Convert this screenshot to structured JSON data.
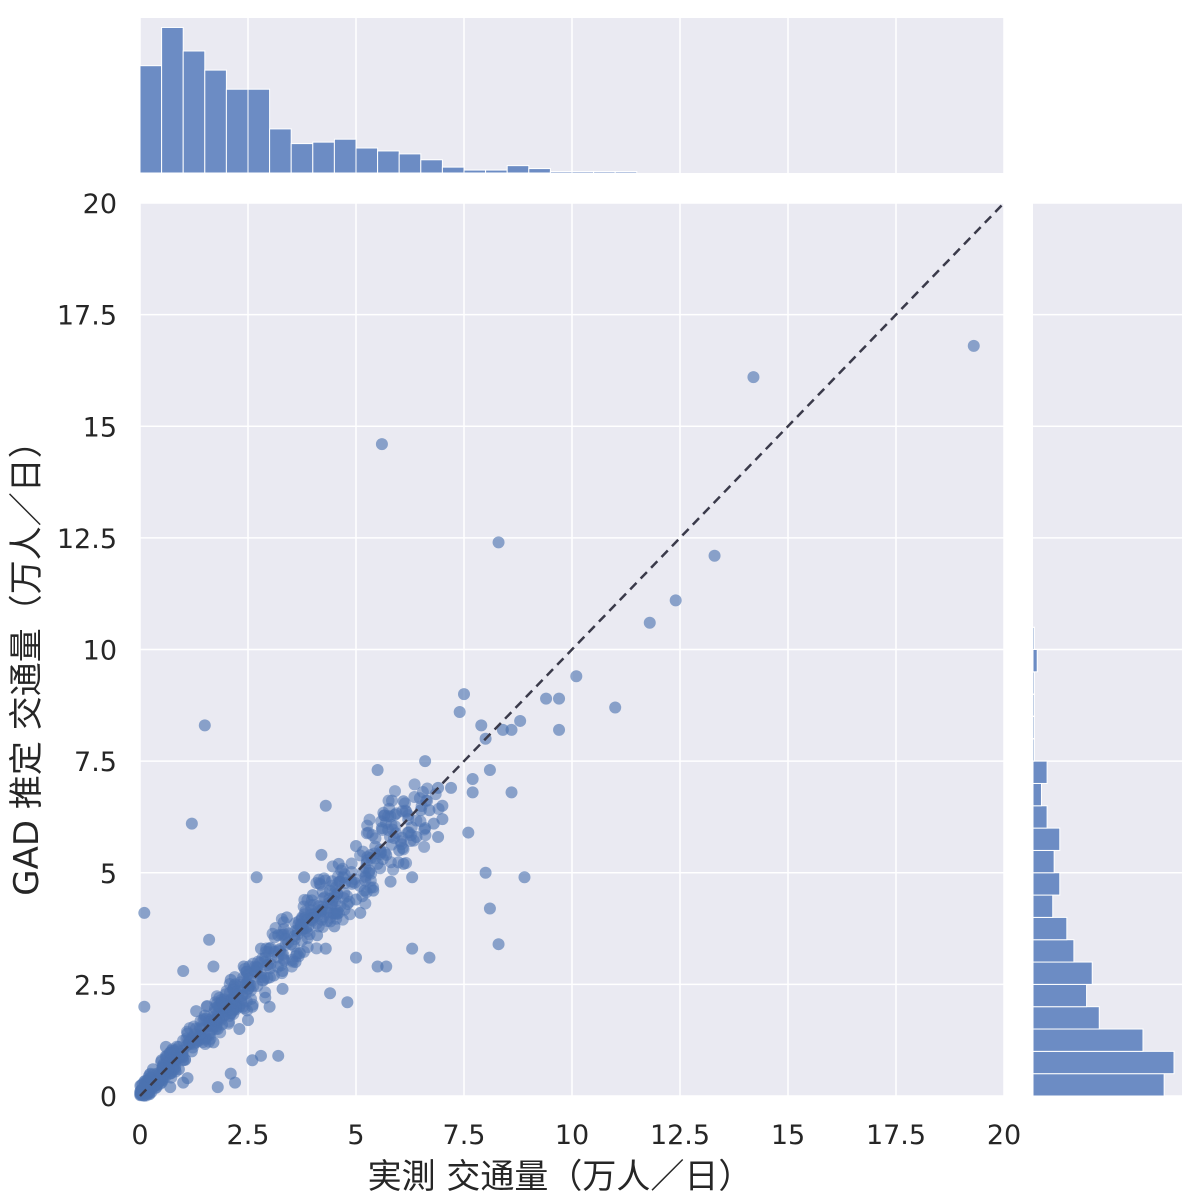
{
  "chart_data": {
    "type": "scatter",
    "subtype": "jointplot",
    "xlabel": "実測 交通量（万人／日）",
    "ylabel": "GAD 推定 交通量（万人／日）",
    "xlim": [
      0,
      20
    ],
    "ylim": [
      0,
      20
    ],
    "x_ticks": [
      "0",
      "2.5",
      "5",
      "7.5",
      "10",
      "12.5",
      "15",
      "17.5",
      "20"
    ],
    "y_ticks": [
      "0",
      "2.5",
      "5",
      "7.5",
      "10",
      "12.5",
      "15",
      "17.5",
      "20"
    ],
    "grid": true,
    "reference_line": {
      "style": "dashed",
      "from": [
        0,
        0
      ],
      "to": [
        20,
        20
      ]
    },
    "colors": {
      "points": "#4c72b0",
      "bars": "#6c8cc4",
      "panel_bg": "#eaeaf2",
      "grid": "#ffffff",
      "diagonal": "#3a3a4a"
    },
    "points": [
      [
        19.3,
        16.8
      ],
      [
        14.2,
        16.1
      ],
      [
        5.6,
        14.6
      ],
      [
        8.3,
        12.4
      ],
      [
        13.3,
        12.1
      ],
      [
        12.4,
        11.1
      ],
      [
        11.8,
        10.6
      ],
      [
        10.1,
        9.4
      ],
      [
        7.5,
        9.0
      ],
      [
        9.4,
        8.9
      ],
      [
        9.7,
        8.9
      ],
      [
        11.0,
        8.7
      ],
      [
        7.4,
        8.6
      ],
      [
        8.8,
        8.4
      ],
      [
        7.9,
        8.3
      ],
      [
        8.0,
        8.0
      ],
      [
        9.7,
        8.2
      ],
      [
        8.6,
        8.2
      ],
      [
        8.4,
        8.2
      ],
      [
        1.5,
        8.3
      ],
      [
        6.6,
        7.5
      ],
      [
        5.5,
        7.3
      ],
      [
        8.1,
        7.3
      ],
      [
        7.7,
        7.1
      ],
      [
        6.9,
        6.9
      ],
      [
        7.7,
        6.8
      ],
      [
        8.6,
        6.8
      ],
      [
        4.3,
        6.5
      ],
      [
        6.1,
        6.6
      ],
      [
        1.2,
        6.1
      ],
      [
        7.6,
        5.9
      ],
      [
        6.8,
        6.1
      ],
      [
        7.0,
        6.2
      ],
      [
        8.0,
        5.0
      ],
      [
        8.9,
        4.9
      ],
      [
        8.1,
        4.2
      ],
      [
        8.3,
        3.4
      ],
      [
        6.3,
        3.3
      ],
      [
        6.7,
        3.1
      ],
      [
        5.0,
        3.1
      ],
      [
        5.5,
        2.9
      ],
      [
        5.7,
        2.9
      ],
      [
        4.4,
        2.3
      ],
      [
        4.8,
        2.1
      ],
      [
        2.7,
        4.9
      ],
      [
        1.6,
        3.5
      ],
      [
        0.1,
        4.1
      ],
      [
        0.1,
        2.0
      ],
      [
        1.0,
        2.8
      ],
      [
        1.8,
        1.5
      ],
      [
        2.8,
        0.9
      ],
      [
        2.6,
        0.8
      ],
      [
        3.2,
        0.9
      ],
      [
        2.1,
        0.5
      ],
      [
        1.1,
        0.4
      ],
      [
        0.6,
        0.6
      ],
      [
        2.2,
        0.3
      ],
      [
        1.8,
        0.2
      ],
      [
        1.7,
        2.9
      ],
      [
        2.1,
        2.6
      ],
      [
        2.5,
        1.7
      ],
      [
        3.3,
        2.4
      ],
      [
        3.0,
        2.0
      ],
      [
        0.5,
        0.3
      ],
      [
        0.7,
        0.5
      ],
      [
        0.3,
        0.2
      ],
      [
        0.9,
        1.1
      ],
      [
        1.3,
        1.2
      ],
      [
        4.6,
        5.2
      ],
      [
        5.0,
        5.6
      ],
      [
        3.8,
        4.9
      ],
      [
        4.2,
        5.4
      ],
      [
        5.6,
        6.0
      ],
      [
        6.0,
        5.5
      ],
      [
        5.3,
        5.0
      ],
      [
        4.0,
        4.0
      ],
      [
        4.4,
        4.6
      ],
      [
        3.5,
        3.4
      ],
      [
        3.9,
        3.8
      ],
      [
        4.8,
        4.3
      ],
      [
        5.2,
        4.6
      ],
      [
        4.5,
        3.8
      ],
      [
        3.2,
        3.6
      ],
      [
        2.9,
        3.1
      ],
      [
        3.6,
        3.0
      ],
      [
        2.5,
        2.4
      ],
      [
        2.3,
        2.0
      ],
      [
        2.0,
        1.9
      ],
      [
        1.6,
        1.4
      ],
      [
        1.4,
        1.5
      ],
      [
        1.2,
        1.0
      ],
      [
        1.0,
        0.8
      ],
      [
        0.8,
        0.9
      ],
      [
        0.4,
        0.5
      ],
      [
        0.2,
        0.1
      ],
      [
        6.2,
        5.9
      ],
      [
        6.5,
        6.4
      ],
      [
        5.9,
        6.3
      ],
      [
        6.4,
        5.8
      ],
      [
        5.7,
        5.4
      ],
      [
        6.3,
        4.9
      ],
      [
        6.9,
        5.8
      ],
      [
        5.4,
        4.6
      ],
      [
        4.7,
        4.9
      ],
      [
        4.9,
        4.8
      ],
      [
        3.4,
        4.0
      ],
      [
        3.0,
        3.3
      ],
      [
        2.7,
        2.8
      ],
      [
        2.2,
        2.5
      ],
      [
        1.8,
        2.0
      ],
      [
        1.5,
        1.8
      ],
      [
        1.9,
        1.6
      ],
      [
        2.6,
        2.0
      ],
      [
        3.1,
        2.7
      ],
      [
        3.7,
        3.2
      ],
      [
        4.1,
        3.6
      ],
      [
        4.3,
        3.3
      ],
      [
        5.1,
        4.1
      ],
      [
        5.8,
        4.8
      ],
      [
        6.1,
        5.2
      ],
      [
        6.6,
        6.0
      ],
      [
        7.0,
        6.5
      ],
      [
        7.2,
        6.9
      ],
      [
        6.7,
        6.4
      ],
      [
        2.4,
        2.9
      ],
      [
        2.8,
        3.3
      ],
      [
        1.3,
        1.9
      ],
      [
        0.6,
        1.1
      ],
      [
        0.9,
        0.6
      ],
      [
        1.1,
        1.4
      ],
      [
        1.7,
        1.2
      ],
      [
        2.3,
        1.5
      ],
      [
        2.9,
        2.2
      ],
      [
        3.3,
        2.8
      ],
      [
        3.6,
        3.7
      ],
      [
        4.0,
        4.5
      ],
      [
        4.6,
        4.1
      ],
      [
        5.0,
        4.4
      ],
      [
        5.5,
        5.2
      ],
      [
        0.3,
        0.6
      ],
      [
        0.5,
        0.8
      ],
      [
        0.7,
        0.2
      ],
      [
        1.0,
        0.3
      ]
    ],
    "x_hist": [
      0.73,
      0.99,
      0.83,
      0.7,
      0.57,
      0.57,
      0.3,
      0.2,
      0.21,
      0.23,
      0.17,
      0.15,
      0.13,
      0.09,
      0.04,
      0.02,
      0.02,
      0.05,
      0.03,
      0.01,
      0.01,
      0.01,
      0.01,
      0,
      0,
      0,
      0,
      0,
      0,
      0,
      0,
      0,
      0,
      0,
      0,
      0,
      0,
      0,
      0,
      0
    ],
    "y_hist": [
      0.93,
      1.0,
      0.78,
      0.47,
      0.38,
      0.42,
      0.29,
      0.24,
      0.14,
      0.19,
      0.15,
      0.19,
      0.1,
      0.06,
      0.1,
      0.01,
      0.01,
      0.01,
      0.01,
      0.03,
      0.01,
      0,
      0,
      0,
      0,
      0,
      0,
      0,
      0,
      0,
      0,
      0,
      0,
      0,
      0,
      0,
      0,
      0,
      0,
      0
    ]
  }
}
